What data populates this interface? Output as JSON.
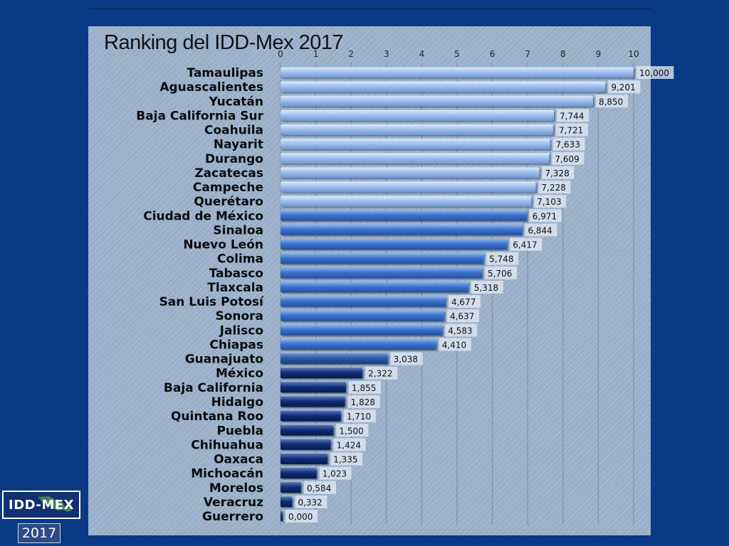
{
  "badge": {
    "label": "IDD-MEX",
    "year": "2017"
  },
  "colors": {
    "slide_bg": "#0a3a86",
    "plot_bg": "#9db4cf",
    "bar_light": "#8fb6ee",
    "bar_medium": "#3a74d0",
    "bar_dark": "#1d4f9c",
    "bar_navy": "#0d2a6e"
  },
  "chart_data": {
    "type": "bar",
    "orientation": "horizontal",
    "title": "Ranking del IDD-Mex 2017",
    "xlim": [
      0,
      10
    ],
    "xticks": [
      "0",
      "1",
      "2",
      "3",
      "4",
      "5",
      "6",
      "7",
      "8",
      "9",
      "10"
    ],
    "x_axis_position": "top",
    "grid": true,
    "categories": [
      "Tamaulipas",
      "Aguascalientes",
      "Yucatán",
      "Baja California Sur",
      "Coahuila",
      "Nayarit",
      "Durango",
      "Zacatecas",
      "Campeche",
      "Querétaro",
      "Ciudad de México",
      "Sinaloa",
      "Nuevo León",
      "Colima",
      "Tabasco",
      "Tlaxcala",
      "San Luis Potosí",
      "Sonora",
      "Jalisco",
      "Chiapas",
      "Guanajuato",
      "México",
      "Baja California",
      "Hidalgo",
      "Quintana Roo",
      "Puebla",
      "Chihuahua",
      "Oaxaca",
      "Michoacán",
      "Morelos",
      "Veracruz",
      "Guerrero"
    ],
    "values": [
      10.0,
      9.201,
      8.85,
      7.744,
      7.721,
      7.633,
      7.609,
      7.328,
      7.228,
      7.103,
      6.971,
      6.844,
      6.417,
      5.748,
      5.706,
      5.318,
      4.677,
      4.637,
      4.583,
      4.41,
      3.038,
      2.322,
      1.855,
      1.828,
      1.71,
      1.5,
      1.424,
      1.335,
      1.023,
      0.584,
      0.332,
      0.0
    ],
    "data_labels": [
      "10,000",
      "9,201",
      "8,850",
      "7,744",
      "7,721",
      "7,633",
      "7,609",
      "7,328",
      "7,228",
      "7,103",
      "6,971",
      "6,844",
      "6,417",
      "5,748",
      "5,706",
      "5,318",
      "4,677",
      "4,637",
      "4,583",
      "4,410",
      "3,038",
      "2,322",
      "1,855",
      "1,828",
      "1,710",
      "1,500",
      "1,424",
      "1,335",
      "1,023",
      "0,584",
      "0,332",
      "0,000"
    ],
    "bar_tiers": [
      "light",
      "light",
      "light",
      "light",
      "light",
      "light",
      "light",
      "light",
      "light",
      "light",
      "medium",
      "medium",
      "medium",
      "medium",
      "medium",
      "medium",
      "medium",
      "medium",
      "medium",
      "medium",
      "dark",
      "navy",
      "navy",
      "navy",
      "navy",
      "navy",
      "navy",
      "navy",
      "navy",
      "navy",
      "navy",
      "navy"
    ]
  }
}
